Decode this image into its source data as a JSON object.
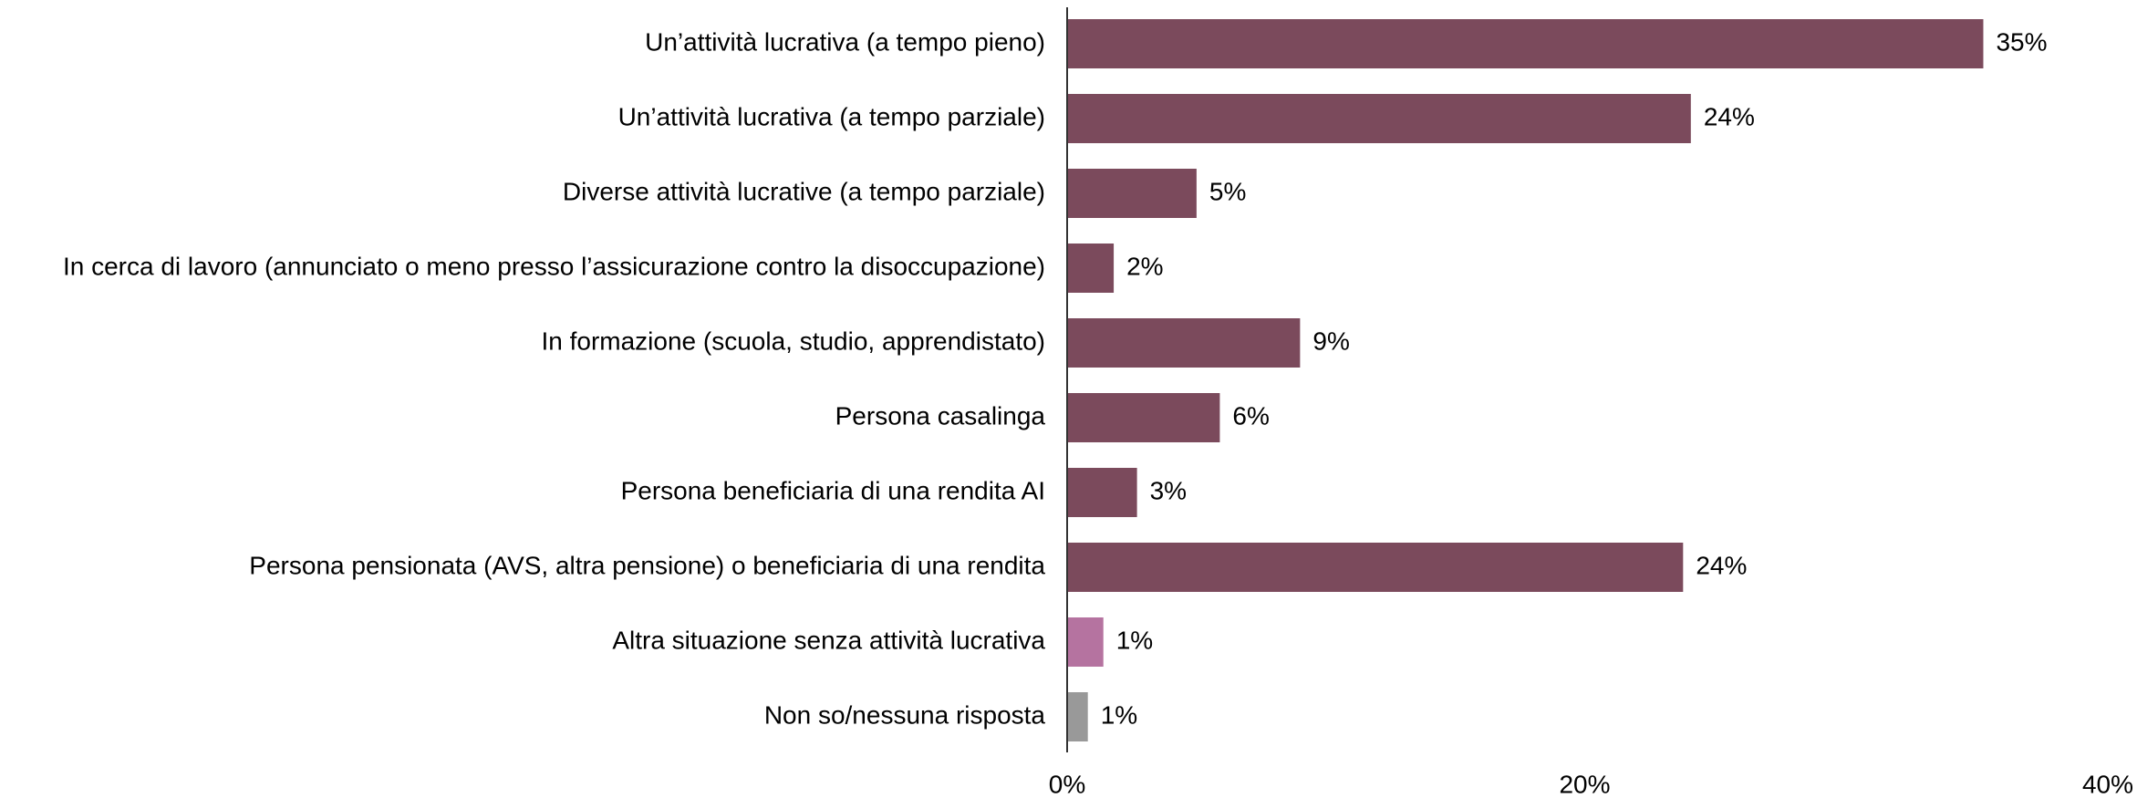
{
  "chart_data": {
    "type": "bar",
    "orientation": "horizontal",
    "categories": [
      "Un’attività lucrativa (a tempo pieno)",
      "Un’attività lucrativa (a tempo parziale)",
      "Diverse attività lucrative (a tempo parziale)",
      "In cerca di lavoro (annunciato o meno presso l’assicurazione contro la disoccupazione)",
      "In formazione (scuola, studio, apprendistato)",
      "Persona casalinga",
      "Persona beneficiaria di una rendita AI",
      "Persona pensionata (AVS, altra pensione) o beneficiaria di una rendita",
      "Altra situazione senza attività lucrativa",
      "Non so/nessuna risposta"
    ],
    "values": [
      35.4,
      24.1,
      5.0,
      1.8,
      9.0,
      5.9,
      2.7,
      23.8,
      1.4,
      0.8
    ],
    "value_labels": [
      "35%",
      "24%",
      "5%",
      "2%",
      "9%",
      "6%",
      "3%",
      "24%",
      "1%",
      "1%"
    ],
    "colors": [
      "#7b4a5c",
      "#7b4a5c",
      "#7b4a5c",
      "#7b4a5c",
      "#7b4a5c",
      "#7b4a5c",
      "#7b4a5c",
      "#7b4a5c",
      "#b573a0",
      "#999999"
    ],
    "xlim": [
      0,
      40
    ],
    "xticks": [
      {
        "value": 0,
        "label": "0%"
      },
      {
        "value": 20,
        "label": "20%"
      },
      {
        "value": 40,
        "label": "40%"
      }
    ],
    "grid": false
  }
}
